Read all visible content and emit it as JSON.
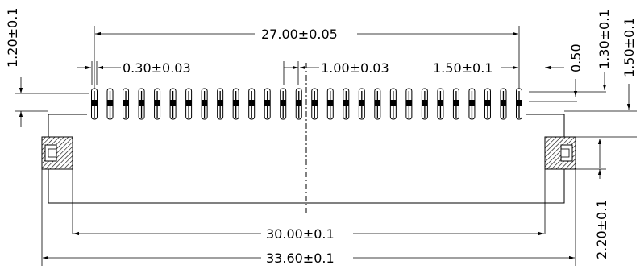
{
  "drawing": {
    "pin_count": 28,
    "labels": {
      "pitch_total": "27.00±0.05",
      "pin_width": "0.30±0.03",
      "pitch": "1.00±0.03",
      "pin_offset": "1.50±0.1",
      "left_height": "1.20±0.1",
      "tip": "0.50",
      "r1": "1.30±0.1",
      "r2": "1.50±0.1",
      "r3": "2.20±0.1",
      "inner_width": "30.00±0.1",
      "overall_width": "33.60±0.1"
    }
  }
}
